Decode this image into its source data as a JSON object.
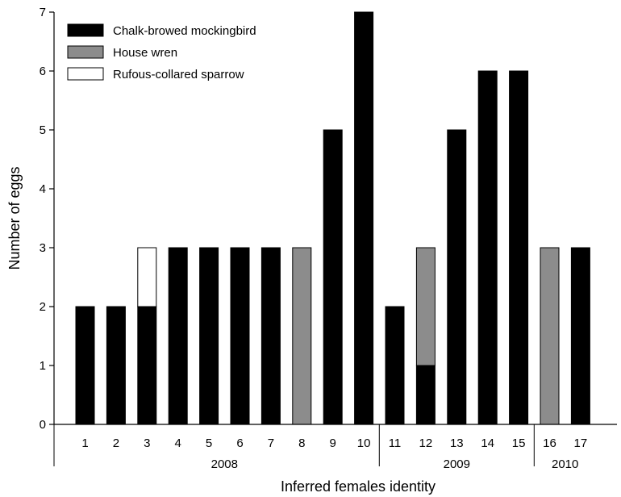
{
  "chart_data": {
    "type": "bar",
    "stacked": true,
    "xlabel": "Inferred females identity",
    "ylabel": "Number of eggs",
    "ylim": [
      0,
      7
    ],
    "yticks": [
      "0",
      "1",
      "2",
      "3",
      "4",
      "5",
      "6",
      "7"
    ],
    "categories": [
      "1",
      "2",
      "3",
      "4",
      "5",
      "6",
      "7",
      "8",
      "9",
      "10",
      "11",
      "12",
      "13",
      "14",
      "15",
      "16",
      "17"
    ],
    "series": [
      {
        "name": "Chalk-browed mockingbird",
        "color": "#000000",
        "values": [
          2,
          2,
          2,
          3,
          3,
          3,
          3,
          0,
          5,
          7,
          2,
          1,
          5,
          6,
          6,
          0,
          3
        ]
      },
      {
        "name": "House wren",
        "color": "#8c8c8c",
        "values": [
          0,
          0,
          0,
          0,
          0,
          0,
          0,
          3,
          0,
          0,
          0,
          2,
          0,
          0,
          0,
          3,
          0
        ]
      },
      {
        "name": "Rufous-collared sparrow",
        "color": "#ffffff",
        "values": [
          0,
          0,
          1,
          0,
          0,
          0,
          0,
          0,
          0,
          0,
          0,
          0,
          0,
          0,
          0,
          0,
          0
        ]
      }
    ],
    "groups": [
      {
        "label": "2008",
        "first": 0,
        "last": 9
      },
      {
        "label": "2009",
        "first": 10,
        "last": 14
      },
      {
        "label": "2010",
        "first": 15,
        "last": 16
      }
    ],
    "legend_position": "top-left",
    "grid": false
  }
}
